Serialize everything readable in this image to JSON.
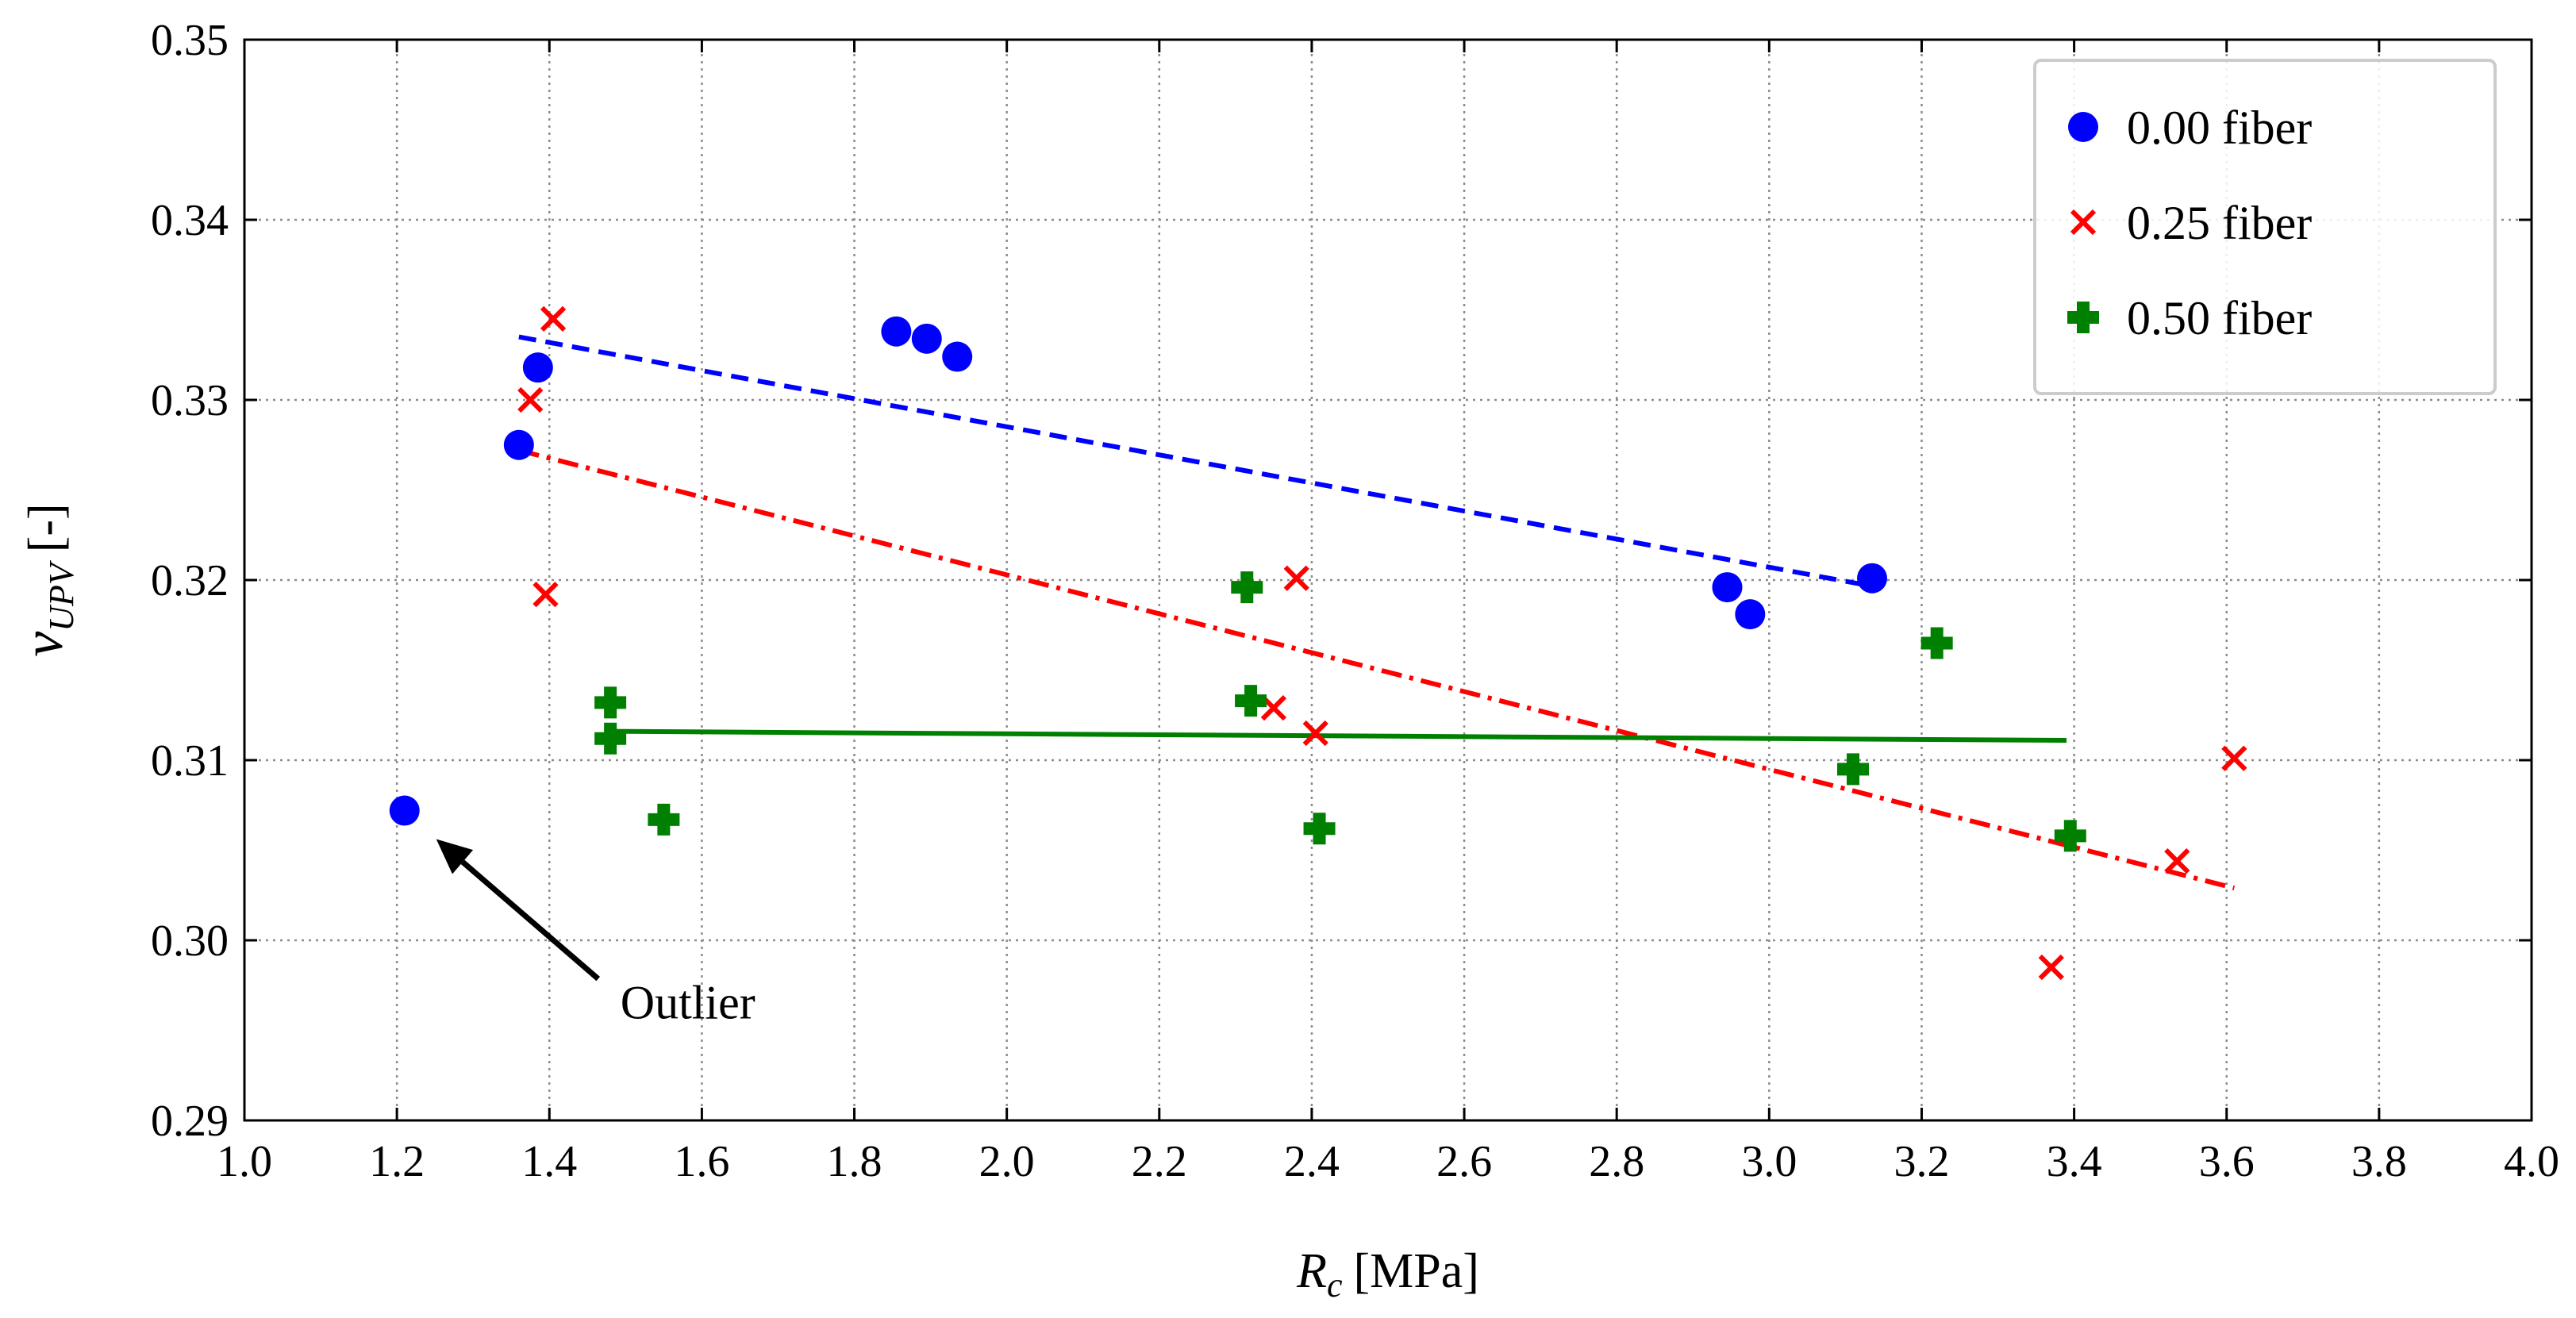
{
  "chart_data": {
    "type": "scatter",
    "title": "",
    "xlabel_symbol": "R",
    "xlabel_sub": "c",
    "xlabel_unit": "[MPa]",
    "ylabel_symbol": "ν",
    "ylabel_sub": "UPV",
    "ylabel_unit": "[-]",
    "xlim": [
      1.0,
      4.0
    ],
    "ylim": [
      0.29,
      0.35
    ],
    "xticks": [
      1.0,
      1.2,
      1.4,
      1.6,
      1.8,
      2.0,
      2.2,
      2.4,
      2.6,
      2.8,
      3.0,
      3.2,
      3.4,
      3.6,
      3.8,
      4.0
    ],
    "xtick_labels": [
      "1.0",
      "1.2",
      "1.4",
      "1.6",
      "1.8",
      "2.0",
      "2.2",
      "2.4",
      "2.6",
      "2.8",
      "3.0",
      "3.2",
      "3.4",
      "3.6",
      "3.8",
      "4.0"
    ],
    "yticks": [
      0.29,
      0.3,
      0.31,
      0.32,
      0.33,
      0.34,
      0.35
    ],
    "ytick_labels": [
      "0.29",
      "0.30",
      "0.31",
      "0.32",
      "0.33",
      "0.34",
      "0.35"
    ],
    "grid": true,
    "legend_position": "top-right",
    "series": [
      {
        "name": "0.00 fiber",
        "marker": "circle",
        "color": "#0000ff",
        "x": [
          1.21,
          1.36,
          1.385,
          1.855,
          1.895,
          1.935,
          2.945,
          2.975,
          3.135
        ],
        "y": [
          0.3072,
          0.3275,
          0.3318,
          0.3338,
          0.3334,
          0.3324,
          0.3196,
          0.3181,
          0.3201
        ],
        "fit": {
          "style": "dashed",
          "x": [
            1.36,
            3.13
          ],
          "y": [
            0.3335,
            0.3197
          ]
        }
      },
      {
        "name": "0.25 fiber",
        "marker": "x",
        "color": "#ff0000",
        "x": [
          1.375,
          1.395,
          1.405,
          2.35,
          2.38,
          2.405,
          3.37,
          3.535,
          3.61
        ],
        "y": [
          0.33,
          0.3192,
          0.3345,
          0.3129,
          0.3201,
          0.3115,
          0.2985,
          0.3044,
          0.3101
        ],
        "fit": {
          "style": "dashdot",
          "x": [
            1.36,
            3.61
          ],
          "y": [
            0.3272,
            0.3029
          ]
        }
      },
      {
        "name": "0.50 fiber",
        "marker": "plus",
        "color": "#008000",
        "x": [
          1.48,
          1.48,
          1.55,
          2.315,
          2.32,
          2.41,
          3.11,
          3.22,
          3.395
        ],
        "y": [
          0.3132,
          0.3112,
          0.3067,
          0.3196,
          0.3133,
          0.3062,
          0.3095,
          0.3165,
          0.3058
        ],
        "fit": {
          "style": "solid",
          "x": [
            1.48,
            3.39
          ],
          "y": [
            0.3116,
            0.3111
          ]
        }
      }
    ],
    "annotations": [
      {
        "text": "Outlier",
        "point_x": 1.21,
        "point_y": 0.3072
      }
    ]
  }
}
